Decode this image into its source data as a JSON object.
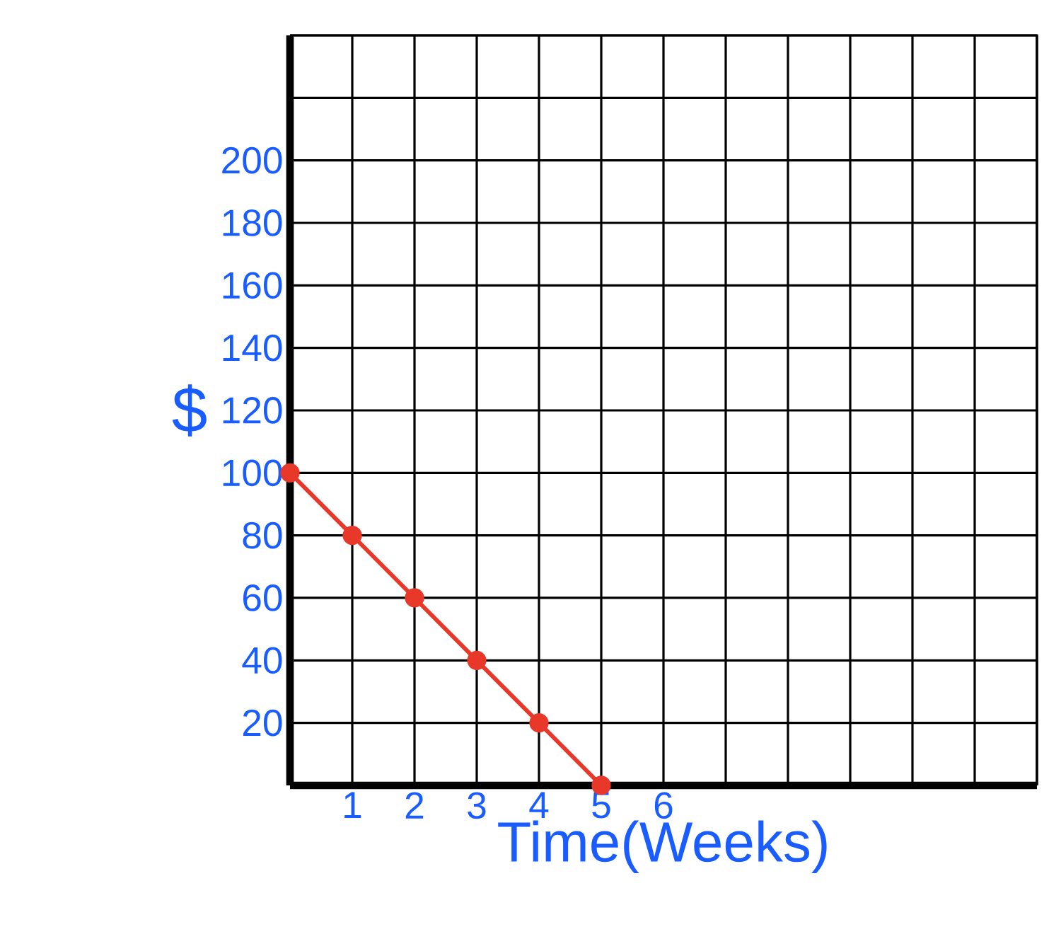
{
  "chart_data": {
    "type": "line",
    "xlabel": "Time(Weeks)",
    "ylabel": "$",
    "x": [
      0,
      1,
      2,
      3,
      4,
      5
    ],
    "series": [
      {
        "color": "#e8382a",
        "values": [
          100,
          80,
          60,
          40,
          20,
          0
        ]
      }
    ],
    "xlim": [
      0,
      12
    ],
    "ylim": [
      0,
      240
    ],
    "xticks": [
      1,
      2,
      3,
      4,
      5,
      6,
      {
        "value": 7,
        "label": null
      },
      {
        "value": 8,
        "label": null
      },
      {
        "value": 9,
        "label": null
      },
      {
        "value": 10,
        "label": null
      },
      {
        "value": 11,
        "label": null
      },
      {
        "value": 12,
        "label": null
      }
    ],
    "yticks": [
      20,
      40,
      60,
      80,
      100,
      120,
      140,
      160,
      180,
      200,
      {
        "value": 220,
        "label": null
      },
      {
        "value": 240,
        "label": null
      }
    ],
    "grid": true,
    "marker": "circle",
    "line_style": "solid"
  }
}
